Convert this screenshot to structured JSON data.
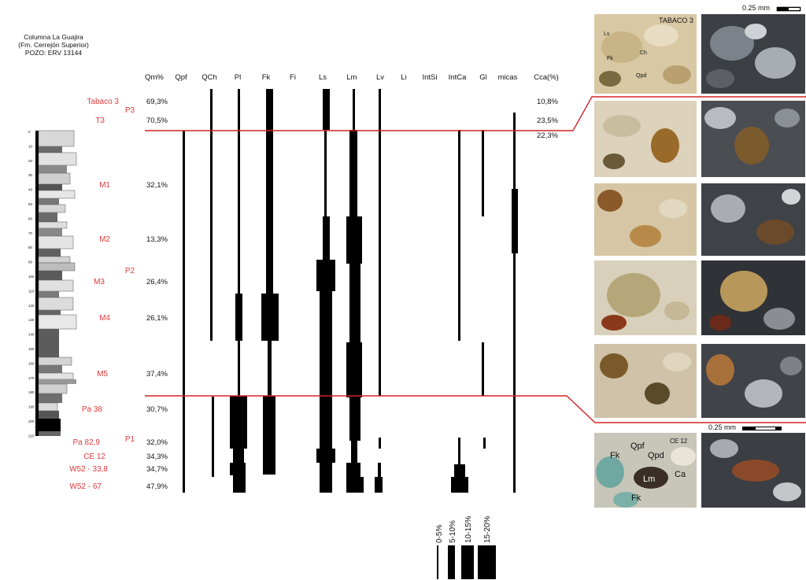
{
  "title": {
    "line1": "Columna La Guajira",
    "line2": "(Fm. Cerrejón Superior)",
    "line3": "POZO: ERV 13144"
  },
  "headers": [
    "Qm%",
    "Qpf",
    "QCh",
    "Pl",
    "Fk",
    "Fi",
    "Ls",
    "Lm",
    "Lv",
    "Li",
    "IntSi",
    "IntCa",
    "Gl",
    "micas",
    "Cca(%)"
  ],
  "samples": [
    {
      "name": "Tabaco 3",
      "qm": "69,3%",
      "cca": "10,8%"
    },
    {
      "name": "T3",
      "qm": "70,5%",
      "cca": "23,5%"
    },
    {
      "name": "",
      "qm": "",
      "cca": "22,3%"
    },
    {
      "name": "M1",
      "qm": "32,1%",
      "cca": ""
    },
    {
      "name": "M2",
      "qm": "13,3%",
      "cca": ""
    },
    {
      "name": "M3",
      "qm": "26,4%",
      "cca": ""
    },
    {
      "name": "M4",
      "qm": "26,1%",
      "cca": ""
    },
    {
      "name": "M5",
      "qm": "37,4%",
      "cca": ""
    },
    {
      "name": "Pa 38",
      "qm": "30,7%",
      "cca": ""
    },
    {
      "name": "Pa 82,9",
      "qm": "32,0%",
      "cca": ""
    },
    {
      "name": "CE 12",
      "qm": "34,3%",
      "cca": ""
    },
    {
      "name": "W52 - 33,8",
      "qm": "34,7%",
      "cca": ""
    },
    {
      "name": "W52 - 67",
      "qm": "47,9%",
      "cca": ""
    }
  ],
  "units": [
    "P3",
    "P2",
    "P1"
  ],
  "depth_ticks": [
    "0",
    "10",
    "20",
    "30",
    "40",
    "50",
    "60",
    "70",
    "80",
    "90",
    "100",
    "110",
    "120",
    "130",
    "140",
    "150",
    "160",
    "170",
    "180",
    "190",
    "200",
    "210"
  ],
  "legend": [
    "0-5%",
    "5-10%",
    "10-15%",
    "15-20%"
  ],
  "photos": {
    "top_label": "TABACO 3",
    "scale_top": "0.25 mm",
    "scale_bottom": "0.25 mm",
    "bottom_labels": [
      "Qpf",
      "CE 12",
      "Qpd",
      "Fk",
      "Lm",
      "Ca",
      "Fk"
    ],
    "top_labels": [
      "Lv",
      "Fk",
      "Ch",
      "Qpd"
    ]
  },
  "colors": {
    "red": "#e03a3a",
    "black": "#000000"
  }
}
